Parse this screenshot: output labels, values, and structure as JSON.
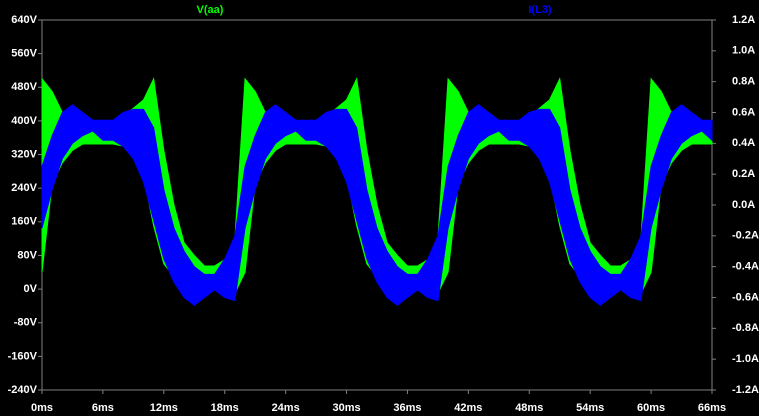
{
  "chart_data": {
    "type": "band",
    "x": [
      0,
      1,
      2,
      3,
      4,
      5,
      6,
      7,
      8,
      9,
      10,
      11,
      12,
      13,
      14,
      15,
      16,
      17,
      18,
      19,
      20,
      21,
      22,
      23,
      24,
      25,
      26,
      27,
      28,
      29,
      30,
      31,
      32,
      33,
      34,
      35,
      36,
      37,
      38,
      39,
      40,
      41,
      42,
      43,
      44,
      45,
      46,
      47,
      48,
      49,
      50,
      51,
      52,
      53,
      54,
      55,
      56,
      57,
      58,
      59,
      60,
      61,
      62,
      63,
      64,
      65,
      66
    ],
    "xlim": [
      0,
      66
    ],
    "xticks": [
      {
        "value": 0,
        "label": "0ms"
      },
      {
        "value": 6,
        "label": "6ms"
      },
      {
        "value": 12,
        "label": "12ms"
      },
      {
        "value": 18,
        "label": "18ms"
      },
      {
        "value": 24,
        "label": "24ms"
      },
      {
        "value": 30,
        "label": "30ms"
      },
      {
        "value": 36,
        "label": "36ms"
      },
      {
        "value": 42,
        "label": "42ms"
      },
      {
        "value": 48,
        "label": "48ms"
      },
      {
        "value": 54,
        "label": "54ms"
      },
      {
        "value": 60,
        "label": "60ms"
      },
      {
        "value": 66,
        "label": "66ms"
      }
    ],
    "ylim": [
      -240,
      640
    ],
    "yticks": [
      {
        "value": 640,
        "label": "640V"
      },
      {
        "value": 560,
        "label": "560V"
      },
      {
        "value": 480,
        "label": "480V"
      },
      {
        "value": 400,
        "label": "400V"
      },
      {
        "value": 320,
        "label": "320V"
      },
      {
        "value": 240,
        "label": "240V"
      },
      {
        "value": 160,
        "label": "160V"
      },
      {
        "value": 80,
        "label": "80V"
      },
      {
        "value": 0,
        "label": "0V"
      },
      {
        "value": -80,
        "label": "-80V"
      },
      {
        "value": -160,
        "label": "-160V"
      },
      {
        "value": -240,
        "label": "-240V"
      }
    ],
    "y2lim": [
      -1.2,
      1.2
    ],
    "y2ticks": [
      {
        "value": 1.2,
        "label": "1.2A"
      },
      {
        "value": 1.0,
        "label": "1.0A"
      },
      {
        "value": 0.8,
        "label": "0.8A"
      },
      {
        "value": 0.6,
        "label": "0.6A"
      },
      {
        "value": 0.4,
        "label": "0.4A"
      },
      {
        "value": 0.2,
        "label": "0.2A"
      },
      {
        "value": 0,
        "label": "0.0A"
      },
      {
        "value": -0.2,
        "label": "-0.2A"
      },
      {
        "value": -0.4,
        "label": "-0.4A"
      },
      {
        "value": -0.6,
        "label": "-0.6A"
      },
      {
        "value": -0.8,
        "label": "-0.8A"
      },
      {
        "value": -1.0,
        "label": "-1.0A"
      },
      {
        "value": -1.2,
        "label": "-1.2A"
      }
    ],
    "grid": false,
    "series": [
      {
        "name": "V(aa)",
        "color": "#00ff00",
        "max": [
          500,
          470,
          420,
          405,
          400,
          400,
          400,
          400,
          410,
          430,
          450,
          500,
          330,
          200,
          110,
          80,
          55,
          55,
          70,
          120,
          500,
          470,
          420,
          405,
          400,
          400,
          400,
          400,
          410,
          430,
          450,
          500,
          330,
          200,
          110,
          80,
          55,
          55,
          70,
          120,
          500,
          470,
          420,
          405,
          400,
          400,
          400,
          400,
          410,
          430,
          450,
          500,
          330,
          200,
          110,
          80,
          55,
          55,
          70,
          120,
          500,
          470,
          420,
          405,
          400,
          400,
          400
        ],
        "min": [
          40,
          250,
          300,
          330,
          345,
          345,
          345,
          345,
          340,
          320,
          270,
          150,
          60,
          30,
          10,
          0,
          0,
          0,
          -5,
          -10,
          40,
          250,
          300,
          330,
          345,
          345,
          345,
          345,
          340,
          320,
          270,
          150,
          60,
          30,
          10,
          0,
          0,
          0,
          -5,
          -10,
          40,
          250,
          300,
          330,
          345,
          345,
          345,
          345,
          340,
          320,
          270,
          150,
          60,
          30,
          10,
          0,
          0,
          0,
          -5,
          -10,
          40,
          250,
          300,
          330,
          345,
          345,
          345
        ]
      },
      {
        "name": "I(L3)",
        "color": "#0000ff",
        "axis": "y2",
        "max": [
          0.25,
          0.45,
          0.6,
          0.65,
          0.6,
          0.55,
          0.55,
          0.55,
          0.6,
          0.62,
          0.62,
          0.5,
          0.1,
          -0.15,
          -0.3,
          -0.4,
          -0.45,
          -0.45,
          -0.35,
          -0.2,
          0.25,
          0.45,
          0.6,
          0.65,
          0.6,
          0.55,
          0.55,
          0.55,
          0.6,
          0.62,
          0.62,
          0.5,
          0.1,
          -0.15,
          -0.3,
          -0.4,
          -0.45,
          -0.45,
          -0.35,
          -0.2,
          0.25,
          0.45,
          0.6,
          0.65,
          0.6,
          0.55,
          0.55,
          0.55,
          0.6,
          0.62,
          0.62,
          0.5,
          0.1,
          -0.15,
          -0.3,
          -0.4,
          -0.45,
          -0.45,
          -0.35,
          -0.2,
          0.25,
          0.45,
          0.6,
          0.65,
          0.6,
          0.55,
          0.55
        ],
        "min": [
          -0.15,
          0.1,
          0.3,
          0.4,
          0.45,
          0.48,
          0.42,
          0.42,
          0.38,
          0.3,
          0.15,
          -0.1,
          -0.35,
          -0.5,
          -0.6,
          -0.65,
          -0.6,
          -0.55,
          -0.6,
          -0.62,
          -0.15,
          0.1,
          0.3,
          0.4,
          0.45,
          0.48,
          0.42,
          0.42,
          0.38,
          0.3,
          0.15,
          -0.1,
          -0.35,
          -0.5,
          -0.6,
          -0.65,
          -0.6,
          -0.55,
          -0.6,
          -0.62,
          -0.15,
          0.1,
          0.3,
          0.4,
          0.45,
          0.48,
          0.42,
          0.42,
          0.38,
          0.3,
          0.15,
          -0.1,
          -0.35,
          -0.5,
          -0.6,
          -0.65,
          -0.6,
          -0.55,
          -0.6,
          -0.62,
          -0.15,
          0.1,
          0.3,
          0.4,
          0.45,
          0.48,
          0.42
        ]
      }
    ]
  }
}
